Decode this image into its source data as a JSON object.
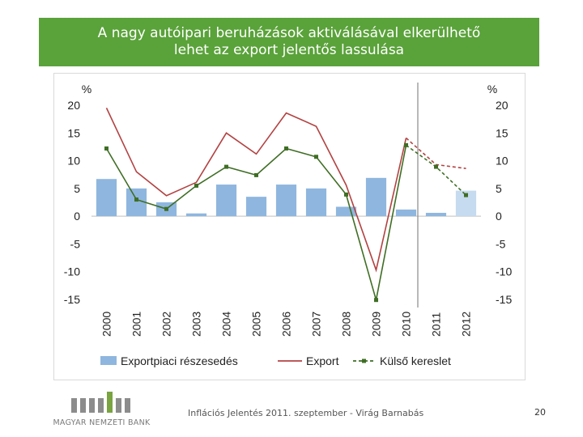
{
  "title": {
    "line1": "A nagy autóipari beruházások aktiválásával elkerülhető",
    "line2": "lehet az export jelentős lassulása"
  },
  "colors": {
    "title_bg": "#5aa23a",
    "bar": "#8fb6de",
    "bar_forecast": "#c6dbef",
    "export_line": "#b34242",
    "demand_line": "#3f6e24",
    "divider": "#8a8a8a"
  },
  "chart_data": {
    "type": "bar+line",
    "categories": [
      "2000",
      "2001",
      "2002",
      "2003",
      "2004",
      "2005",
      "2006",
      "2007",
      "2008",
      "2009",
      "2010",
      "2011",
      "2012"
    ],
    "forecast_from": "2011",
    "divider_after": "2010",
    "y_left": {
      "label": "%",
      "ylim": [
        -15,
        20
      ],
      "ticks": [
        20,
        15,
        10,
        5,
        0,
        -5,
        -10,
        -15
      ]
    },
    "y_right": {
      "label": "%",
      "ylim": [
        -15,
        20
      ],
      "ticks": [
        20,
        15,
        10,
        5,
        0,
        -5,
        -10,
        -15
      ]
    },
    "series": [
      {
        "name": "Exportpiaci részesedés",
        "kind": "bar",
        "values": [
          6.7,
          5.0,
          2.5,
          0.5,
          5.7,
          3.5,
          5.7,
          5.0,
          1.7,
          6.9,
          1.2,
          0.6,
          4.6
        ]
      },
      {
        "name": "Export",
        "kind": "line",
        "values": [
          19.5,
          8.0,
          3.7,
          6.1,
          15.0,
          11.2,
          18.6,
          16.2,
          5.6,
          -9.7,
          14.1,
          9.3,
          8.6
        ]
      },
      {
        "name": "Külső kereslet",
        "kind": "line-marker",
        "values": [
          12.2,
          3.0,
          1.3,
          5.5,
          8.9,
          7.4,
          12.2,
          10.7,
          3.9,
          -15.1,
          12.8,
          8.9,
          3.8
        ]
      }
    ],
    "legend": [
      "Exportpiaci részesedés",
      "Export",
      "Külső kereslet"
    ]
  },
  "footer": {
    "logo_text": "MAGYAR NEMZETI BANK",
    "caption": "Inflációs Jelentés 2011. szeptember - Virág Barnabás",
    "page_number": "20"
  }
}
